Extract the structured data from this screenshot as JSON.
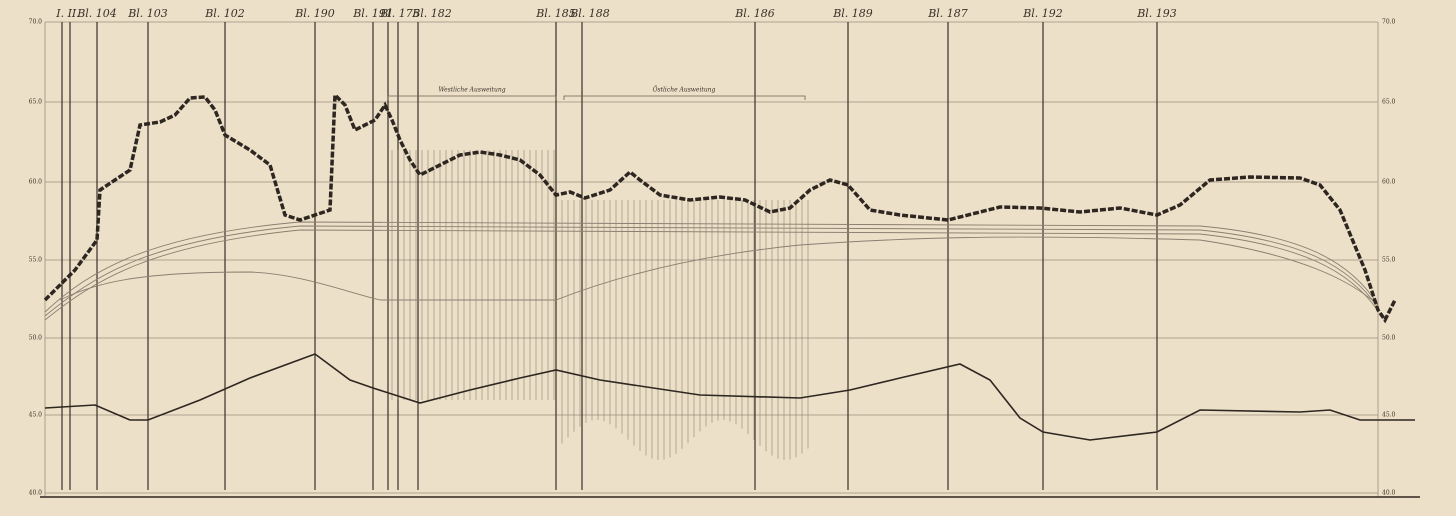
{
  "header_labels": [
    "I. II.",
    "Bl. 104",
    "Bl. 103",
    "Bl. 102",
    "Bl. 190",
    "Bl. 191",
    "Bl. 175",
    "Bl. 182",
    "Bl. 185",
    "Bl. 188",
    "Bl. 186",
    "Bl. 189",
    "Bl. 187",
    "Bl. 192",
    "Bl. 193"
  ],
  "left_axis": [
    "70.0",
    "65.0",
    "60.0",
    "55.0",
    "50.0",
    "45.0",
    "40.0"
  ],
  "right_axis": [
    "70.0",
    "65.0",
    "60.0",
    "55.0",
    "50.0",
    "45.0",
    "40.0"
  ],
  "sections": [
    "Westliche Ausweitung",
    "Östliche Ausweitung"
  ]
}
